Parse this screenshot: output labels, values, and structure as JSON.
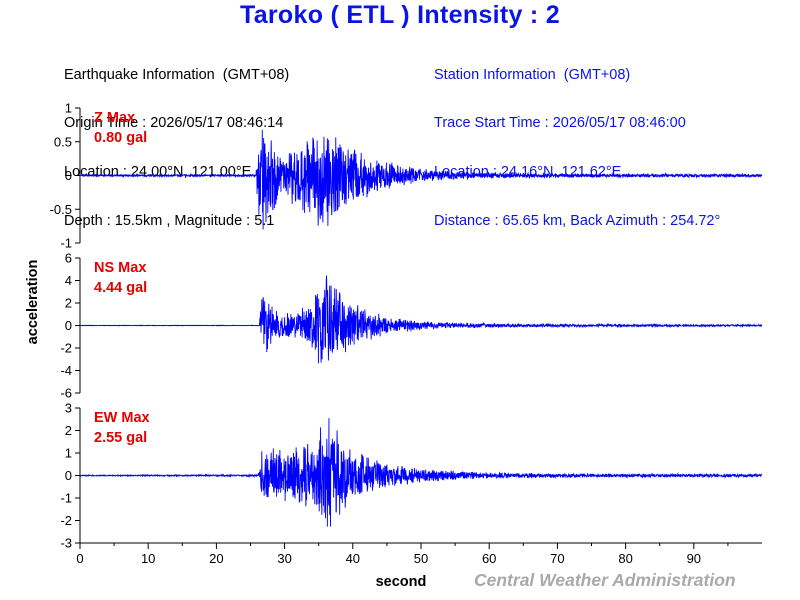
{
  "title": "Taroko ( ETL ) Intensity : 2",
  "earthquake_info": {
    "heading": "Earthquake Information  (GMT+08)",
    "origin_time": "Origin Time : 2026/05/17 08:46:14",
    "location": "Location : 24.00°N, 121.00°E",
    "depth_magnitude": "Depth : 15.5km , Magnitude : 5.1"
  },
  "station_info": {
    "heading": "Station Information  (GMT+08)",
    "trace_start": "Trace Start Time : 2026/05/17 08:46:00",
    "location": "Location : 24.16°N, 121.62°E",
    "distance": "Distance : 65.65 km, Back Azimuth : 254.72°"
  },
  "watermark": "Central Weather Administration",
  "colors": {
    "title": "#0a14e6",
    "trace": "#0000ff",
    "component_label": "#e60000",
    "axis": "#000000",
    "watermark": "#a9a9a9"
  },
  "chart_data": {
    "type": "line",
    "xlabel": "second",
    "ylabel": "acceleration",
    "xlim": [
      0,
      100
    ],
    "x_ticks": [
      0,
      10,
      20,
      30,
      40,
      50,
      60,
      70,
      80,
      90
    ],
    "shared_x": true,
    "grid": false,
    "panels": [
      {
        "component": "Z",
        "label": "Z Max",
        "max_text": "0.80 gal",
        "max_value": 0.8,
        "ylim": [
          -1,
          1
        ],
        "y_ticks": [
          1,
          0.5,
          0,
          -0.5,
          -1
        ],
        "envelope_points": [
          [
            0,
            0.01
          ],
          [
            25.8,
            0.01
          ],
          [
            26.2,
            0.55
          ],
          [
            27,
            0.6
          ],
          [
            28,
            0.35
          ],
          [
            30,
            0.25
          ],
          [
            32,
            0.3
          ],
          [
            34,
            0.45
          ],
          [
            35.5,
            0.6
          ],
          [
            36.5,
            0.55
          ],
          [
            38,
            0.4
          ],
          [
            40,
            0.3
          ],
          [
            42,
            0.22
          ],
          [
            45,
            0.14
          ],
          [
            50,
            0.07
          ],
          [
            55,
            0.04
          ],
          [
            60,
            0.03
          ],
          [
            70,
            0.02
          ],
          [
            100,
            0.015
          ]
        ]
      },
      {
        "component": "NS",
        "label": "NS Max",
        "max_text": "4.44 gal",
        "max_value": 4.44,
        "ylim": [
          -6,
          6
        ],
        "y_ticks": [
          6,
          4,
          2,
          0,
          -2,
          -4,
          -6
        ],
        "envelope_points": [
          [
            0,
            0.02
          ],
          [
            26.3,
            0.02
          ],
          [
            26.6,
            2.3
          ],
          [
            27.5,
            1.9
          ],
          [
            28.5,
            1.2
          ],
          [
            30,
            0.9
          ],
          [
            32,
            1.0
          ],
          [
            34,
            1.8
          ],
          [
            35.5,
            3.3
          ],
          [
            36.5,
            3.8
          ],
          [
            37.5,
            3.2
          ],
          [
            39,
            2.0
          ],
          [
            40,
            1.7
          ],
          [
            42,
            1.1
          ],
          [
            45,
            0.6
          ],
          [
            50,
            0.35
          ],
          [
            55,
            0.2
          ],
          [
            60,
            0.15
          ],
          [
            70,
            0.1
          ],
          [
            100,
            0.06
          ]
        ]
      },
      {
        "component": "EW",
        "label": "EW Max",
        "max_text": "2.55 gal",
        "max_value": 2.55,
        "ylim": [
          -3,
          3
        ],
        "y_ticks": [
          3,
          2,
          1,
          0,
          -1,
          -2,
          -3
        ],
        "envelope_points": [
          [
            0,
            0.02
          ],
          [
            24,
            0.03
          ],
          [
            26.2,
            0.05
          ],
          [
            26.5,
            0.9
          ],
          [
            27.5,
            1.0
          ],
          [
            29,
            0.95
          ],
          [
            31,
            1.0
          ],
          [
            33,
            1.2
          ],
          [
            35,
            1.7
          ],
          [
            36.5,
            2.2
          ],
          [
            38,
            1.6
          ],
          [
            40,
            1.1
          ],
          [
            42,
            0.8
          ],
          [
            45,
            0.45
          ],
          [
            50,
            0.3
          ],
          [
            55,
            0.18
          ],
          [
            60,
            0.12
          ],
          [
            70,
            0.08
          ],
          [
            100,
            0.06
          ]
        ]
      }
    ]
  }
}
